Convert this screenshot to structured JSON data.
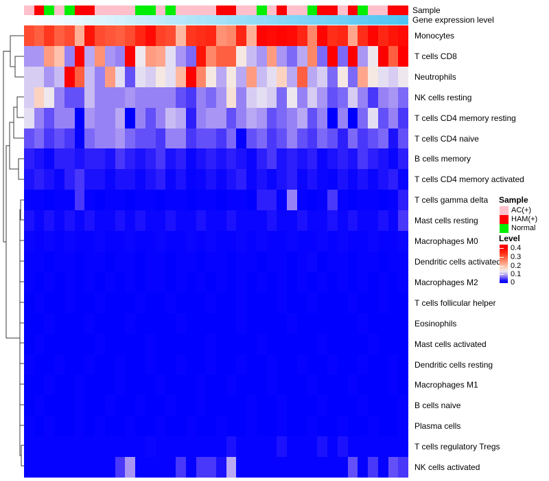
{
  "annotations": {
    "sample_label": "Sample",
    "expression_label": "Gene expression level",
    "expression_gradient_from": "#FFFFFF",
    "expression_gradient_to": "#4FC4F2",
    "sample_colors": {
      "AC": "#FFC0CB",
      "HAM": "#FF0000",
      "NORMAL": "#00EE00"
    }
  },
  "legend": {
    "sample_title": "Sample",
    "items": [
      {
        "label": "AC(+)",
        "color": "#FFC0CB"
      },
      {
        "label": "HAM(+)",
        "color": "#FF0000"
      },
      {
        "label": "Normal",
        "color": "#00EE00"
      }
    ],
    "level_title": "Level",
    "level_ticks": [
      "0.4",
      "0.3",
      "0.2",
      "0.1",
      "0"
    ]
  },
  "chart_data": {
    "type": "heatmap",
    "title": "",
    "rows": [
      "Monocytes",
      "T cells CD8",
      "Neutrophils",
      "NK cells resting",
      "T cells CD4 memory resting",
      "T cells CD4 naive",
      "B cells memory",
      "T cells CD4 memory activated",
      "T cells gamma delta",
      "Mast cells resting",
      "Macrophages M0",
      "Dendritic cells activated",
      "Macrophages M2",
      "T cells follicular helper",
      "Eosinophils",
      "Mast cells activated",
      "Dendritic cells resting",
      "Macrophages M1",
      "B cells naive",
      "Plasma cells",
      "T cells regulatory Tregs",
      "NK cells activated"
    ],
    "n_columns": 38,
    "column_sample_groups": [
      "AC",
      "HAM",
      "NORMAL",
      "AC",
      "NORMAL",
      "HAM",
      "HAM",
      "AC",
      "AC",
      "AC",
      "AC",
      "NORMAL",
      "NORMAL",
      "AC",
      "NORMAL",
      "AC",
      "AC",
      "AC",
      "AC",
      "HAM",
      "HAM",
      "AC",
      "AC",
      "NORMAL",
      "AC",
      "HAM",
      "AC",
      "AC",
      "NORMAL",
      "HAM",
      "HAM",
      "AC",
      "HAM",
      "NORMAL",
      "AC",
      "AC",
      "HAM",
      "HAM"
    ],
    "column_expression_level": "ascending left-to-right, rendered white to sky blue",
    "row_dendrogram": true,
    "color_scale": {
      "min": 0,
      "max": 0.42,
      "legend_top_value": 0.45,
      "stops": [
        [
          0.0,
          [
            0,
            0,
            255
          ]
        ],
        [
          0.02,
          [
            10,
            5,
            254
          ]
        ],
        [
          0.04,
          [
            45,
            30,
            252
          ]
        ],
        [
          0.06,
          [
            100,
            80,
            248
          ]
        ],
        [
          0.08,
          [
            150,
            130,
            245
          ]
        ],
        [
          0.1,
          [
            185,
            168,
            243
          ]
        ],
        [
          0.12,
          [
            215,
            205,
            242
          ]
        ],
        [
          0.135,
          [
            235,
            230,
            242
          ]
        ],
        [
          0.15,
          [
            245,
            232,
            226
          ]
        ],
        [
          0.18,
          [
            252,
            210,
            192
          ]
        ],
        [
          0.22,
          [
            255,
            175,
            150
          ]
        ],
        [
          0.26,
          [
            255,
            135,
            105
          ]
        ],
        [
          0.3,
          [
            255,
            95,
            65
          ]
        ],
        [
          0.34,
          [
            255,
            55,
            30
          ]
        ],
        [
          0.38,
          [
            255,
            20,
            8
          ]
        ],
        [
          0.42,
          [
            255,
            0,
            0
          ]
        ]
      ]
    },
    "values": [
      [
        0.32,
        0.3,
        0.34,
        0.3,
        0.32,
        0.22,
        0.38,
        0.32,
        0.31,
        0.3,
        0.32,
        0.36,
        0.4,
        0.33,
        0.32,
        0.21,
        0.34,
        0.35,
        0.36,
        0.25,
        0.26,
        0.36,
        0.22,
        0.41,
        0.4,
        0.41,
        0.4,
        0.36,
        0.26,
        0.41,
        0.35,
        0.36,
        0.23,
        0.35,
        0.41,
        0.36,
        0.38,
        0.4
      ],
      [
        0.09,
        0.09,
        0.24,
        0.2,
        0.08,
        0.42,
        0.1,
        0.25,
        0.09,
        0.08,
        0.42,
        0.14,
        0.24,
        0.23,
        0.13,
        0.09,
        0.07,
        0.38,
        0.26,
        0.3,
        0.3,
        0.15,
        0.11,
        0.09,
        0.24,
        0.09,
        0.07,
        0.1,
        0.26,
        0.07,
        0.42,
        0.07,
        0.42,
        0.09,
        0.14,
        0.42,
        0.3,
        0.42
      ],
      [
        0.12,
        0.12,
        0.09,
        0.11,
        0.42,
        0.3,
        0.11,
        0.08,
        0.24,
        0.13,
        0.06,
        0.13,
        0.12,
        0.15,
        0.13,
        0.21,
        0.42,
        0.26,
        0.15,
        0.1,
        0.15,
        0.1,
        0.24,
        0.11,
        0.13,
        0.18,
        0.1,
        0.3,
        0.1,
        0.12,
        0.07,
        0.15,
        0.07,
        0.23,
        0.15,
        0.13,
        0.12,
        0.14
      ],
      [
        0.12,
        0.18,
        0.14,
        0.08,
        0.06,
        0.06,
        0.11,
        0.08,
        0.08,
        0.08,
        0.09,
        0.08,
        0.08,
        0.08,
        0.08,
        0.06,
        0.05,
        0.08,
        0.07,
        0.09,
        0.16,
        0.08,
        0.12,
        0.13,
        0.12,
        0.07,
        0.14,
        0.08,
        0.12,
        0.09,
        0.06,
        0.07,
        0.12,
        0.08,
        0.05,
        0.08,
        0.09,
        0.07
      ],
      [
        0.13,
        0.08,
        0.06,
        0.08,
        0.08,
        0.0,
        0.09,
        0.08,
        0.08,
        0.1,
        0.0,
        0.08,
        0.06,
        0.08,
        0.11,
        0.1,
        0.04,
        0.08,
        0.09,
        0.09,
        0.06,
        0.08,
        0.1,
        0.09,
        0.06,
        0.07,
        0.08,
        0.1,
        0.06,
        0.08,
        0.0,
        0.08,
        0.0,
        0.07,
        0.13,
        0.06,
        0.08,
        0.05
      ],
      [
        0.06,
        0.07,
        0.05,
        0.06,
        0.05,
        0.01,
        0.07,
        0.08,
        0.08,
        0.09,
        0.07,
        0.06,
        0.06,
        0.05,
        0.08,
        0.08,
        0.05,
        0.06,
        0.06,
        0.05,
        0.07,
        0.01,
        0.06,
        0.07,
        0.05,
        0.06,
        0.08,
        0.06,
        0.05,
        0.07,
        0.06,
        0.04,
        0.07,
        0.05,
        0.06,
        0.07,
        0.03,
        0.06
      ],
      [
        0.04,
        0.03,
        0.02,
        0.04,
        0.04,
        0.03,
        0.04,
        0.04,
        0.03,
        0.05,
        0.04,
        0.03,
        0.04,
        0.05,
        0.03,
        0.04,
        0.02,
        0.03,
        0.04,
        0.03,
        0.04,
        0.03,
        0.02,
        0.04,
        0.05,
        0.03,
        0.04,
        0.03,
        0.04,
        0.02,
        0.03,
        0.04,
        0.03,
        0.05,
        0.04,
        0.03,
        0.02,
        0.04
      ],
      [
        0.03,
        0.04,
        0.03,
        0.02,
        0.04,
        0.05,
        0.03,
        0.03,
        0.02,
        0.03,
        0.03,
        0.02,
        0.03,
        0.04,
        0.02,
        0.03,
        0.01,
        0.02,
        0.03,
        0.02,
        0.03,
        0.04,
        0.02,
        0.03,
        0.02,
        0.03,
        0.04,
        0.02,
        0.03,
        0.02,
        0.01,
        0.03,
        0.02,
        0.03,
        0.02,
        0.03,
        0.04,
        0.02
      ],
      [
        0.01,
        0.01,
        0.0,
        0.01,
        0.01,
        0.05,
        0.01,
        0.0,
        0.01,
        0.01,
        0.0,
        0.01,
        0.01,
        0.0,
        0.01,
        0.01,
        0.0,
        0.01,
        0.01,
        0.0,
        0.01,
        0.01,
        0.0,
        0.04,
        0.04,
        0.01,
        0.08,
        0.01,
        0.0,
        0.01,
        0.05,
        0.01,
        0.0,
        0.01,
        0.01,
        0.0,
        0.01,
        0.04
      ],
      [
        0.03,
        0.02,
        0.03,
        0.02,
        0.03,
        0.02,
        0.03,
        0.02,
        0.02,
        0.03,
        0.02,
        0.03,
        0.02,
        0.02,
        0.03,
        0.02,
        0.02,
        0.03,
        0.02,
        0.02,
        0.03,
        0.02,
        0.02,
        0.02,
        0.03,
        0.02,
        0.02,
        0.03,
        0.02,
        0.02,
        0.03,
        0.02,
        0.03,
        0.02,
        0.02,
        0.03,
        0.02,
        0.05
      ],
      [
        0.02,
        0.01,
        0.02,
        0.01,
        0.02,
        0.01,
        0.01,
        0.02,
        0.01,
        0.01,
        0.02,
        0.01,
        0.01,
        0.02,
        0.01,
        0.01,
        0.02,
        0.01,
        0.02,
        0.01,
        0.01,
        0.02,
        0.01,
        0.02,
        0.01,
        0.01,
        0.02,
        0.01,
        0.01,
        0.02,
        0.01,
        0.02,
        0.01,
        0.01,
        0.02,
        0.01,
        0.01,
        0.02
      ],
      [
        0.01,
        0.01,
        0.0,
        0.01,
        0.01,
        0.0,
        0.01,
        0.01,
        0.0,
        0.01,
        0.01,
        0.0,
        0.01,
        0.01,
        0.0,
        0.01,
        0.01,
        0.0,
        0.01,
        0.01,
        0.0,
        0.01,
        0.01,
        0.0,
        0.01,
        0.01,
        0.0,
        0.01,
        0.02,
        0.0,
        0.01,
        0.01,
        0.0,
        0.01,
        0.01,
        0.0,
        0.01,
        0.01
      ],
      [
        0.01,
        0.0,
        0.01,
        0.0,
        0.01,
        0.0,
        0.01,
        0.0,
        0.01,
        0.0,
        0.01,
        0.0,
        0.01,
        0.01,
        0.0,
        0.01,
        0.0,
        0.01,
        0.0,
        0.01,
        0.0,
        0.01,
        0.0,
        0.01,
        0.0,
        0.01,
        0.0,
        0.01,
        0.0,
        0.01,
        0.0,
        0.01,
        0.0,
        0.01,
        0.0,
        0.01,
        0.0,
        0.01
      ],
      [
        0.0,
        0.01,
        0.0,
        0.0,
        0.01,
        0.0,
        0.0,
        0.01,
        0.0,
        0.0,
        0.0,
        0.01,
        0.0,
        0.0,
        0.01,
        0.0,
        0.0,
        0.0,
        0.01,
        0.0,
        0.0,
        0.01,
        0.0,
        0.0,
        0.0,
        0.01,
        0.0,
        0.0,
        0.01,
        0.0,
        0.0,
        0.0,
        0.01,
        0.0,
        0.0,
        0.01,
        0.0,
        0.0
      ],
      [
        0.0,
        0.0,
        0.01,
        0.0,
        0.0,
        0.0,
        0.01,
        0.0,
        0.0,
        0.0,
        0.01,
        0.0,
        0.0,
        0.0,
        0.0,
        0.01,
        0.0,
        0.0,
        0.0,
        0.0,
        0.0,
        0.01,
        0.0,
        0.0,
        0.0,
        0.0,
        0.01,
        0.0,
        0.0,
        0.0,
        0.0,
        0.0,
        0.0,
        0.01,
        0.0,
        0.0,
        0.0,
        0.0
      ],
      [
        0.0,
        0.01,
        0.0,
        0.0,
        0.0,
        0.0,
        0.0,
        0.01,
        0.0,
        0.0,
        0.0,
        0.0,
        0.01,
        0.0,
        0.0,
        0.0,
        0.0,
        0.0,
        0.01,
        0.0,
        0.0,
        0.0,
        0.0,
        0.01,
        0.0,
        0.0,
        0.0,
        0.0,
        0.0,
        0.01,
        0.0,
        0.0,
        0.0,
        0.0,
        0.01,
        0.0,
        0.0,
        0.0
      ],
      [
        0.01,
        0.0,
        0.0,
        0.01,
        0.0,
        0.0,
        0.01,
        0.0,
        0.0,
        0.01,
        0.0,
        0.0,
        0.01,
        0.0,
        0.0,
        0.01,
        0.0,
        0.0,
        0.01,
        0.0,
        0.0,
        0.01,
        0.0,
        0.0,
        0.01,
        0.0,
        0.0,
        0.01,
        0.0,
        0.0,
        0.01,
        0.0,
        0.0,
        0.01,
        0.0,
        0.0,
        0.01,
        0.0
      ],
      [
        0.0,
        0.0,
        0.01,
        0.0,
        0.0,
        0.01,
        0.0,
        0.0,
        0.0,
        0.01,
        0.0,
        0.0,
        0.0,
        0.01,
        0.0,
        0.0,
        0.0,
        0.01,
        0.0,
        0.0,
        0.01,
        0.0,
        0.0,
        0.0,
        0.01,
        0.0,
        0.0,
        0.0,
        0.01,
        0.0,
        0.0,
        0.0,
        0.01,
        0.0,
        0.0,
        0.0,
        0.01,
        0.0
      ],
      [
        0.0,
        0.01,
        0.0,
        0.0,
        0.0,
        0.01,
        0.0,
        0.0,
        0.01,
        0.0,
        0.0,
        0.01,
        0.0,
        0.0,
        0.01,
        0.0,
        0.0,
        0.01,
        0.0,
        0.0,
        0.0,
        0.0,
        0.01,
        0.0,
        0.0,
        0.01,
        0.0,
        0.0,
        0.0,
        0.01,
        0.0,
        0.0,
        0.0,
        0.01,
        0.0,
        0.0,
        0.0,
        0.01
      ],
      [
        0.01,
        0.0,
        0.01,
        0.0,
        0.0,
        0.01,
        0.0,
        0.01,
        0.0,
        0.0,
        0.01,
        0.0,
        0.0,
        0.01,
        0.0,
        0.0,
        0.01,
        0.0,
        0.0,
        0.01,
        0.0,
        0.0,
        0.01,
        0.0,
        0.0,
        0.01,
        0.0,
        0.0,
        0.01,
        0.0,
        0.0,
        0.01,
        0.0,
        0.0,
        0.01,
        0.0,
        0.0,
        0.01
      ],
      [
        0.01,
        0.01,
        0.01,
        0.01,
        0.01,
        0.01,
        0.01,
        0.01,
        0.01,
        0.01,
        0.01,
        0.01,
        0.02,
        0.01,
        0.01,
        0.01,
        0.01,
        0.01,
        0.01,
        0.01,
        0.03,
        0.01,
        0.01,
        0.01,
        0.01,
        0.03,
        0.01,
        0.01,
        0.01,
        0.03,
        0.01,
        0.03,
        0.01,
        0.01,
        0.01,
        0.01,
        0.01,
        0.01
      ],
      [
        0.01,
        0.01,
        0.01,
        0.01,
        0.01,
        0.01,
        0.01,
        0.01,
        0.01,
        0.05,
        0.09,
        0.01,
        0.01,
        0.01,
        0.01,
        0.05,
        0.01,
        0.05,
        0.05,
        0.03,
        0.1,
        0.01,
        0.01,
        0.01,
        0.01,
        0.01,
        0.01,
        0.01,
        0.01,
        0.01,
        0.01,
        0.01,
        0.06,
        0.01,
        0.05,
        0.01,
        0.06,
        0.05
      ]
    ]
  }
}
